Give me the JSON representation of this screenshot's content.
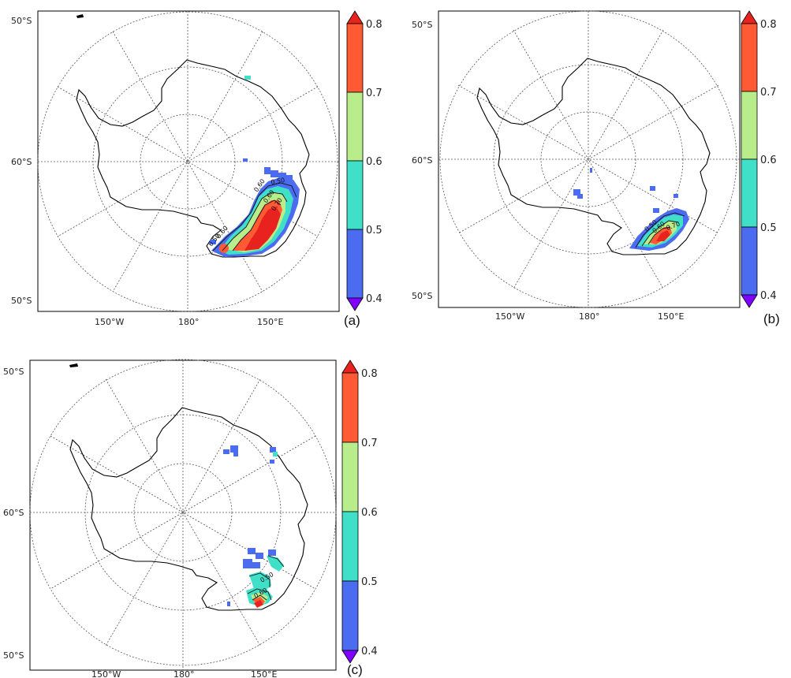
{
  "colorbar": {
    "ticks": [
      "0.4",
      "0.5",
      "0.6",
      "0.7",
      "0.8"
    ],
    "colors": {
      "under": "#7f00ff",
      "bin_04_05": "#4b6cf0",
      "bin_05_06": "#40e0c8",
      "bin_06_07": "#b9ec8a",
      "bin_07_08": "#ff5a33",
      "over": "#e8221f"
    }
  },
  "axes": {
    "lat_top": "50°S",
    "lat_mid": "60°S",
    "lat_bottom": "50°S",
    "lon_left": "150°W",
    "lon_center": "180°",
    "lon_right": "150°E"
  },
  "panels": [
    {
      "label": "(a)",
      "contour_labels": [
        "0.50",
        "0.60",
        "0.60",
        "0.50",
        "0.60",
        "0.70"
      ]
    },
    {
      "label": "(b)",
      "contour_labels": [
        "0.50",
        "0.60",
        "0.70"
      ]
    },
    {
      "label": "(c)",
      "contour_labels": [
        "0.50",
        "0.60"
      ]
    }
  ]
}
